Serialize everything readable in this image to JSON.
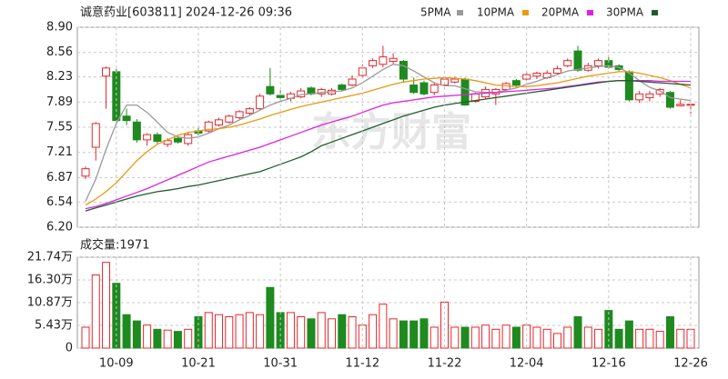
{
  "chart_data": [
    {
      "type": "candlestick",
      "title": "诚意药业[603811] 2024-12-26 09:36",
      "watermark": "东方财富",
      "up_color": "#e8262c",
      "down_color": "#1f8a1f",
      "open": [
        6.89,
        7.28,
        8.24,
        8.3,
        7.7,
        7.62,
        7.38,
        7.45,
        7.32,
        7.4,
        7.33,
        7.5,
        7.5,
        7.58,
        7.62,
        7.68,
        7.74,
        7.8,
        8.1,
        7.98,
        7.94,
        7.96,
        8.08,
        8.0,
        8.0,
        8.12,
        8.12,
        8.25,
        8.38,
        8.4,
        8.44,
        8.44,
        8.12,
        8.15,
        8.02,
        8.12,
        8.16,
        8.2,
        7.9,
        7.96,
        8.0,
        8.06,
        8.18,
        8.2,
        8.24,
        8.22,
        8.28,
        8.38,
        8.58,
        8.32,
        8.38,
        8.45,
        8.38,
        8.3,
        7.92,
        7.95,
        8.0,
        8.02,
        7.84,
        7.86
      ],
      "high": [
        7.02,
        7.62,
        8.37,
        8.34,
        7.8,
        7.66,
        7.47,
        7.48,
        7.4,
        7.44,
        7.48,
        7.54,
        7.64,
        7.68,
        7.72,
        7.78,
        7.82,
        8.0,
        8.35,
        8.05,
        8.03,
        8.08,
        8.1,
        8.08,
        8.08,
        8.14,
        8.25,
        8.4,
        8.48,
        8.65,
        8.55,
        8.46,
        8.22,
        8.18,
        8.16,
        8.22,
        8.23,
        8.22,
        8.02,
        8.1,
        8.08,
        8.16,
        8.2,
        8.3,
        8.3,
        8.32,
        8.38,
        8.48,
        8.65,
        8.42,
        8.48,
        8.5,
        8.4,
        8.32,
        8.04,
        8.04,
        8.08,
        8.04,
        7.92,
        7.87
      ],
      "low": [
        6.85,
        7.1,
        7.8,
        7.6,
        7.58,
        7.34,
        7.3,
        7.33,
        7.28,
        7.33,
        7.3,
        7.44,
        7.48,
        7.56,
        7.6,
        7.66,
        7.72,
        7.78,
        7.98,
        7.9,
        7.9,
        7.94,
        7.98,
        7.96,
        7.98,
        8.04,
        8.1,
        8.22,
        8.35,
        8.36,
        8.4,
        8.15,
        8.0,
        7.98,
        7.98,
        8.1,
        8.14,
        7.84,
        7.88,
        7.94,
        7.85,
        8.04,
        8.1,
        8.18,
        8.2,
        8.2,
        8.26,
        8.36,
        8.3,
        8.3,
        8.34,
        8.34,
        8.3,
        7.9,
        7.88,
        7.9,
        7.96,
        7.8,
        7.83,
        7.73
      ],
      "close": [
        6.99,
        7.6,
        8.35,
        7.64,
        7.64,
        7.38,
        7.45,
        7.36,
        7.37,
        7.35,
        7.45,
        7.47,
        7.62,
        7.65,
        7.7,
        7.76,
        7.8,
        7.97,
        8.0,
        7.95,
        8.0,
        8.04,
        8.0,
        8.06,
        8.05,
        8.06,
        8.2,
        8.35,
        8.45,
        8.5,
        8.48,
        8.2,
        8.02,
        8.0,
        8.12,
        8.2,
        8.2,
        7.85,
        8.0,
        8.06,
        8.06,
        8.14,
        8.12,
        8.26,
        8.28,
        8.28,
        8.34,
        8.45,
        8.32,
        8.38,
        8.45,
        8.36,
        8.33,
        7.92,
        8.0,
        8.0,
        8.06,
        7.82,
        7.86,
        7.86
      ],
      "series": [
        {
          "name": "5PMA",
          "color": "#9a9a9a",
          "values": [
            6.55,
            6.85,
            7.25,
            7.6,
            7.85,
            7.85,
            7.75,
            7.62,
            7.48,
            7.42,
            7.4,
            7.42,
            7.47,
            7.53,
            7.58,
            7.65,
            7.71,
            7.78,
            7.85,
            7.9,
            7.94,
            7.99,
            8.0,
            8.02,
            8.03,
            8.04,
            8.08,
            8.15,
            8.24,
            8.33,
            8.4,
            8.38,
            8.31,
            8.23,
            8.15,
            8.11,
            8.11,
            8.07,
            8.03,
            8.02,
            8.02,
            8.05,
            8.08,
            8.13,
            8.17,
            8.22,
            8.26,
            8.31,
            8.33,
            8.35,
            8.37,
            8.38,
            8.36,
            8.28,
            8.18,
            8.09,
            8.04,
            7.95,
            7.93,
            7.91
          ]
        },
        {
          "name": "10PMA",
          "color": "#e89a10",
          "values": [
            6.5,
            6.58,
            6.68,
            6.8,
            6.95,
            7.1,
            7.22,
            7.32,
            7.38,
            7.44,
            7.48,
            7.5,
            7.52,
            7.53,
            7.55,
            7.58,
            7.62,
            7.66,
            7.71,
            7.75,
            7.79,
            7.83,
            7.86,
            7.89,
            7.92,
            7.95,
            7.98,
            8.01,
            8.05,
            8.09,
            8.13,
            8.16,
            8.18,
            8.2,
            8.21,
            8.22,
            8.21,
            8.2,
            8.18,
            8.15,
            8.12,
            8.11,
            8.1,
            8.1,
            8.11,
            8.13,
            8.15,
            8.18,
            8.21,
            8.24,
            8.26,
            8.28,
            8.3,
            8.3,
            8.28,
            8.25,
            8.22,
            8.18,
            8.13,
            8.08
          ]
        },
        {
          "name": "20PMA",
          "color": "#e020e0",
          "values": [
            6.45,
            6.48,
            6.52,
            6.57,
            6.62,
            6.67,
            6.72,
            6.78,
            6.84,
            6.9,
            6.96,
            7.02,
            7.08,
            7.12,
            7.16,
            7.2,
            7.24,
            7.28,
            7.33,
            7.38,
            7.43,
            7.48,
            7.53,
            7.58,
            7.62,
            7.66,
            7.7,
            7.75,
            7.8,
            7.85,
            7.88,
            7.9,
            7.92,
            7.94,
            7.96,
            7.97,
            7.98,
            7.99,
            8.0,
            8.01,
            8.02,
            8.03,
            8.04,
            8.05,
            8.06,
            8.07,
            8.08,
            8.1,
            8.12,
            8.14,
            8.16,
            8.17,
            8.18,
            8.18,
            8.18,
            8.18,
            8.17,
            8.17,
            8.17,
            8.17
          ]
        },
        {
          "name": "30PMA",
          "color": "#1e5e2e",
          "values": [
            6.42,
            6.46,
            6.5,
            6.54,
            6.58,
            6.62,
            6.65,
            6.68,
            6.7,
            6.72,
            6.75,
            6.77,
            6.8,
            6.83,
            6.86,
            6.89,
            6.92,
            6.95,
            7.0,
            7.05,
            7.1,
            7.15,
            7.22,
            7.3,
            7.35,
            7.4,
            7.45,
            7.5,
            7.55,
            7.6,
            7.65,
            7.7,
            7.74,
            7.78,
            7.82,
            7.85,
            7.87,
            7.89,
            7.91,
            7.93,
            7.95,
            7.97,
            7.99,
            8.01,
            8.03,
            8.05,
            8.07,
            8.09,
            8.11,
            8.13,
            8.15,
            8.17,
            8.18,
            8.18,
            8.17,
            8.16,
            8.15,
            8.14,
            8.13,
            8.12
          ]
        }
      ],
      "ylim": [
        6.2,
        8.9
      ],
      "yticks": [
        {
          "value": 8.9,
          "label": "8.90"
        },
        8.56,
        8.23,
        7.89,
        7.55,
        7.21,
        6.87,
        6.54,
        {
          "value": 6.2,
          "label": "6.20"
        }
      ],
      "grid": true
    },
    {
      "type": "bar",
      "title": "成交量:1971",
      "categories": [
        null,
        null,
        null,
        "10-09",
        null,
        null,
        null,
        null,
        null,
        null,
        null,
        "10-21",
        null,
        null,
        null,
        null,
        null,
        null,
        null,
        "10-31",
        null,
        null,
        null,
        null,
        null,
        null,
        null,
        "11-12",
        null,
        null,
        null,
        null,
        null,
        null,
        null,
        "11-22",
        null,
        null,
        null,
        null,
        null,
        null,
        null,
        "12-04",
        null,
        null,
        null,
        null,
        null,
        null,
        null,
        "12-16",
        null,
        null,
        null,
        null,
        null,
        null,
        null,
        "12-26"
      ],
      "values": [
        5.0,
        17.5,
        20.5,
        15.5,
        8.0,
        6.5,
        5.5,
        4.5,
        4.3,
        4.0,
        4.5,
        7.5,
        8.5,
        8.0,
        7.5,
        8.0,
        8.5,
        8.0,
        14.5,
        8.5,
        8.5,
        7.5,
        7.0,
        8.5,
        7.0,
        8.0,
        7.5,
        5.5,
        8.0,
        10.5,
        7.0,
        6.5,
        6.5,
        7.0,
        5.0,
        11.0,
        5.0,
        5.0,
        5.0,
        5.5,
        4.5,
        5.5,
        5.0,
        5.5,
        5.0,
        4.5,
        3.5,
        5.0,
        7.5,
        5.0,
        4.5,
        9.0,
        4.5,
        6.5,
        4.5,
        4.5,
        4.0,
        7.5,
        4.5,
        4.5
      ],
      "ylim": [
        0,
        21.74
      ],
      "yticks": [
        {
          "value": 21.74,
          "label": "21.74万"
        },
        {
          "value": 16.3,
          "label": "16.30万"
        },
        {
          "value": 10.87,
          "label": "10.87万"
        },
        {
          "value": 5.43,
          "label": "5.43万"
        },
        0
      ],
      "grid": true
    }
  ]
}
